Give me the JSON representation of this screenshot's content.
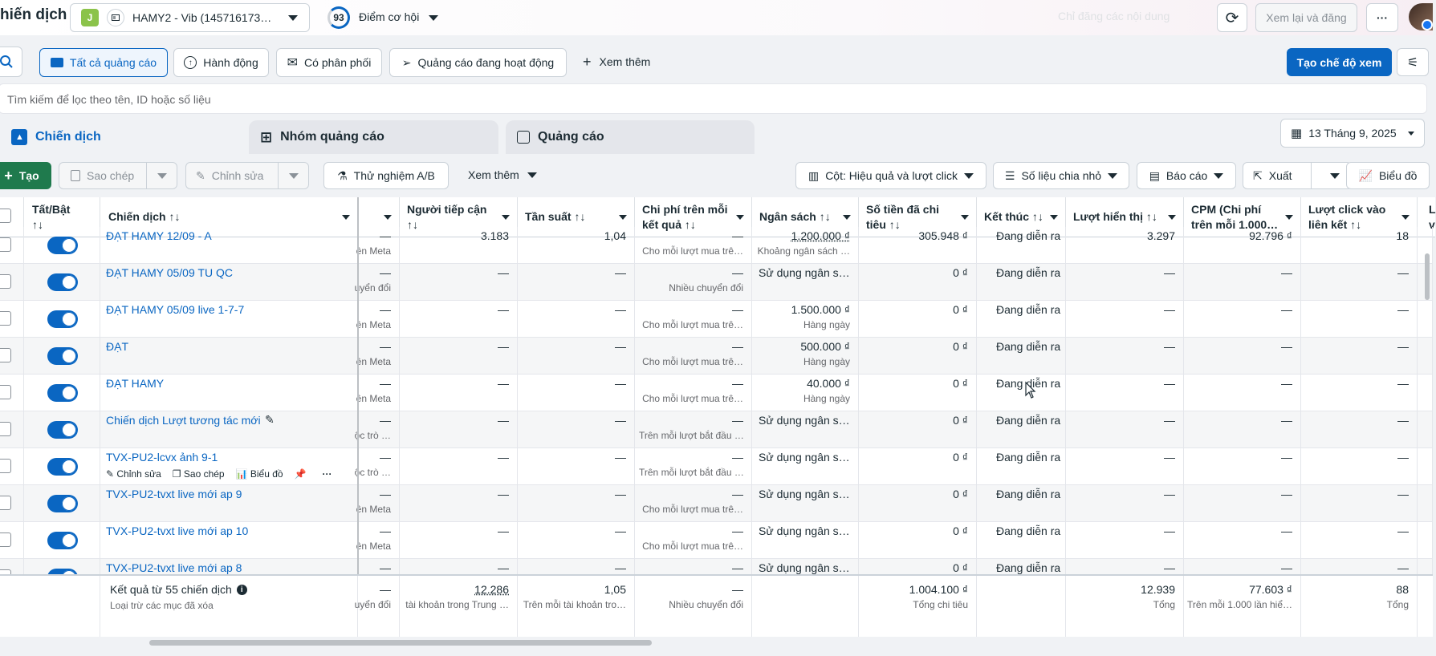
{
  "header": {
    "title": "hiến dịch",
    "account_badge": "J",
    "account_name": "HAMY2 - Vib (145716173…",
    "score": "93",
    "opportunity_label": "Điểm cơ hội",
    "faded_text": "Chỉ đăng các nội dung",
    "review_publish": "Xem lại và đăng",
    "more": "···"
  },
  "filters": {
    "all_ads": "Tất cả quảng cáo",
    "actions": "Hành động",
    "delivery": "Có phân phối",
    "active_ads": "Quảng cáo đang hoạt động",
    "see_more": "Xem thêm",
    "create_view": "Tạo chế độ xem"
  },
  "search": {
    "placeholder": "Tìm kiếm để lọc theo tên, ID hoặc số liệu"
  },
  "tabs": [
    {
      "label": "Chiến dịch"
    },
    {
      "label": "Nhóm quảng cáo"
    },
    {
      "label": "Quảng cáo"
    }
  ],
  "date_range": "13 Tháng 9, 2025",
  "toolbar": {
    "create": "Tạo",
    "duplicate": "Sao chép",
    "edit": "Chỉnh sửa",
    "ab_test": "Thử nghiệm A/B",
    "see_more": "Xem thêm",
    "columns": "Cột: Hiệu quả và lượt click",
    "breakdown": "Số liệu chia nhỏ",
    "reports": "Báo cáo",
    "export": "Xuất",
    "chart": "Biểu đồ"
  },
  "columns": {
    "toggle": "Tất/Bật",
    "toggle_sort": "↑↓",
    "campaign": "Chiến dịch ↑↓",
    "reach_a": "Người tiếp cận",
    "reach_b": "↑↓",
    "frequency": "Tần suất ↑↓",
    "cpr_a": "Chi phí trên mỗi",
    "cpr_b": "kết quả ↑↓",
    "budget": "Ngân sách ↑↓",
    "spent_a": "Số tiền đã chi",
    "spent_b": "tiêu ↑↓",
    "ends": "Kết thúc ↑↓",
    "impressions": "Lượt hiển thị ↑↓",
    "cpm_a": "CPM (Chi phí",
    "cpm_b": "trên mỗi 1.000…",
    "clicks_a": "Lượt click vào",
    "clicks_b": "liên kết ↑↓",
    "last_a": "L",
    "last_b": "v"
  },
  "rows": [
    {
      "name": "ĐẠT HAMY 12/09 - A",
      "result_sub": "ên Meta",
      "reach": "3.183",
      "freq": "1,04",
      "cpr": "—",
      "cpr_sub": "Cho mỗi lượt mua trê…",
      "budget": "1.200.000 ₫",
      "budget_sub": "Khoảng ngân sách …",
      "spent": "305.948 ₫",
      "end": "Đang diễn ra",
      "impr": "3.297",
      "cpm": "92.796 ₫",
      "clicks": "18"
    },
    {
      "name": "ĐẠT HAMY 05/09 TU QC",
      "result_sub": "uyển đổi",
      "reach": "—",
      "freq": "—",
      "cpr": "—",
      "cpr_sub": "Nhiều chuyển đổi",
      "budget": "Sử dụng ngân s…",
      "budget_sub": "",
      "spent": "0 ₫",
      "end": "Đang diễn ra",
      "impr": "—",
      "cpm": "—",
      "clicks": "—"
    },
    {
      "name": "ĐẠT HAMY 05/09 live 1-7-7",
      "result_sub": "ên Meta",
      "reach": "—",
      "freq": "—",
      "cpr": "—",
      "cpr_sub": "Cho mỗi lượt mua trê…",
      "budget": "1.500.000 ₫",
      "budget_sub": "Hàng ngày",
      "spent": "0 ₫",
      "end": "Đang diễn ra",
      "impr": "—",
      "cpm": "—",
      "clicks": "—"
    },
    {
      "name": "ĐẠT",
      "result_sub": "ên Meta",
      "reach": "—",
      "freq": "—",
      "cpr": "—",
      "cpr_sub": "Cho mỗi lượt mua trê…",
      "budget": "500.000 ₫",
      "budget_sub": "Hàng ngày",
      "spent": "0 ₫",
      "end": "Đang diễn ra",
      "impr": "—",
      "cpm": "—",
      "clicks": "—"
    },
    {
      "name": "ĐẠT HAMY",
      "result_sub": "ên Meta",
      "reach": "—",
      "freq": "—",
      "cpr": "—",
      "cpr_sub": "Cho mỗi lượt mua trê…",
      "budget": "40.000 ₫",
      "budget_sub": "Hàng ngày",
      "spent": "0 ₫",
      "end": "Đang diễn ra",
      "impr": "—",
      "cpm": "—",
      "clicks": "—"
    },
    {
      "name": "Chiến dịch Lượt tương tác mới",
      "result_sub": "ộc trò …",
      "reach": "—",
      "freq": "—",
      "cpr": "—",
      "cpr_sub": "Trên mỗi lượt bắt đầu …",
      "budget": "Sử dụng ngân s…",
      "budget_sub": "",
      "spent": "0 ₫",
      "end": "Đang diễn ra",
      "impr": "—",
      "cpm": "—",
      "clicks": "—"
    },
    {
      "name": "TVX-PU2-lcvx ảnh 9-1",
      "result_sub": "ộc trò …",
      "reach": "—",
      "freq": "—",
      "cpr": "—",
      "cpr_sub": "Trên mỗi lượt bắt đầu …",
      "budget": "Sử dụng ngân s…",
      "budget_sub": "",
      "spent": "0 ₫",
      "end": "Đang diễn ra",
      "impr": "—",
      "cpm": "—",
      "clicks": "—"
    },
    {
      "name": "TVX-PU2-tvxt live mới ap 9",
      "result_sub": "ên Meta",
      "reach": "—",
      "freq": "—",
      "cpr": "—",
      "cpr_sub": "Cho mỗi lượt mua trê…",
      "budget": "Sử dụng ngân s…",
      "budget_sub": "",
      "spent": "0 ₫",
      "end": "Đang diễn ra",
      "impr": "—",
      "cpm": "—",
      "clicks": "—"
    },
    {
      "name": "TVX-PU2-tvxt live mới ap 10",
      "result_sub": "ên Meta",
      "reach": "—",
      "freq": "—",
      "cpr": "—",
      "cpr_sub": "Cho mỗi lượt mua trê…",
      "budget": "Sử dụng ngân s…",
      "budget_sub": "",
      "spent": "0 ₫",
      "end": "Đang diễn ra",
      "impr": "—",
      "cpm": "—",
      "clicks": "—"
    },
    {
      "name": "TVX-PU2-tvxt live mới ap 8",
      "result_sub": "",
      "reach": "—",
      "freq": "—",
      "cpr": "—",
      "cpr_sub": "",
      "budget": "Sử dụng ngân s…",
      "budget_sub": "",
      "spent": "0 ₫",
      "end": "Đang diễn ra",
      "impr": "—",
      "cpm": "—",
      "clicks": "—"
    }
  ],
  "row_actions": {
    "edit": "Chỉnh sửa",
    "duplicate": "Sao chép",
    "chart": "Biểu đồ",
    "more": "···"
  },
  "totals": {
    "label": "Kết quả từ 55 chiến dịch",
    "sub": "Loại trừ các mục đã xóa",
    "result_sub": "uyển đổi",
    "result": "—",
    "reach": "12.286",
    "reach_sub": "tài khoản trong Trung …",
    "freq": "1,05",
    "freq_sub": "Trên mỗi tài khoản tro…",
    "cpr": "—",
    "cpr_sub": "Nhiều chuyển đổi",
    "spent": "1.004.100 ₫",
    "spent_sub": "Tổng chi tiêu",
    "impr": "12.939",
    "impr_sub": "Tổng",
    "cpm": "77.603 ₫",
    "cpm_sub": "Trên mỗi 1.000 lần hiể…",
    "clicks": "88",
    "clicks_sub": "Tổng"
  }
}
